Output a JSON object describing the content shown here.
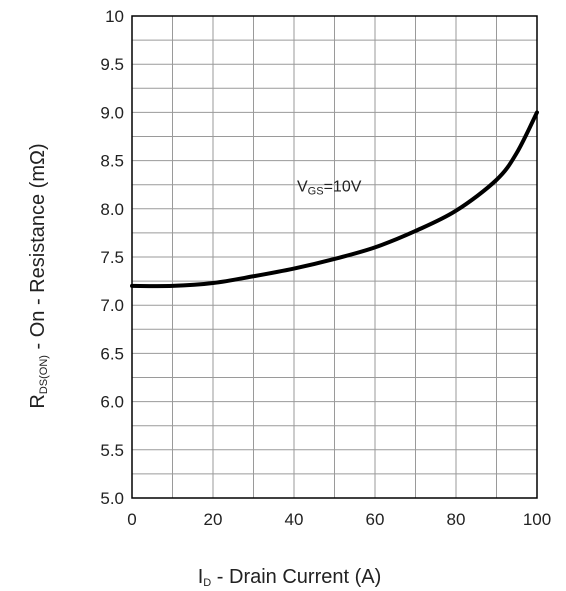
{
  "chart_data": {
    "type": "line",
    "xlabel": {
      "main": "I",
      "sub": "D",
      "rest": " - Drain Current (A)"
    },
    "ylabel": {
      "main": "R",
      "sub": "DS(ON)",
      "rest": " - On - Resistance (mΩ)"
    },
    "xlim": [
      0,
      100
    ],
    "ylim": [
      5.0,
      10.0
    ],
    "x_ticks": [
      "0",
      "20",
      "40",
      "60",
      "80",
      "100"
    ],
    "y_ticks": [
      "5.0",
      "5.5",
      "6.0",
      "6.5",
      "7.0",
      "7.5",
      "8.0",
      "8.5",
      "9.0",
      "9.5",
      "10"
    ],
    "grid": true,
    "annotation": {
      "main": "V",
      "sub": "GS",
      "rest": "=10V",
      "x": 40,
      "y": 8.2
    },
    "series": [
      {
        "x": [
          0,
          10,
          20,
          30,
          40,
          50,
          60,
          70,
          80,
          90,
          95,
          100
        ],
        "y": [
          7.2,
          7.2,
          7.23,
          7.3,
          7.38,
          7.48,
          7.6,
          7.77,
          7.98,
          8.3,
          8.58,
          9.0
        ]
      }
    ]
  }
}
